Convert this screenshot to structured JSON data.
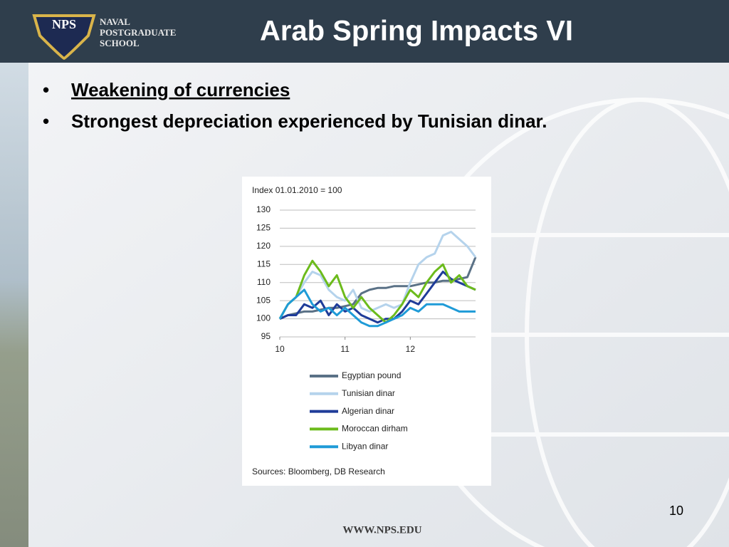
{
  "header": {
    "logo_badge": "NPS",
    "logo_text": [
      "NAVAL",
      "POSTGRADUATE",
      "SCHOOL"
    ],
    "title": "Arab Spring Impacts VI"
  },
  "bullets": [
    "Weakening of currencies",
    "Strongest depreciation experienced by Tunisian dinar."
  ],
  "page_number": 10,
  "footer": "WWW.NPS.EDU",
  "chart_data": {
    "type": "line",
    "y_label": "Index 01.01.2010 = 100",
    "source": "Sources: Bloomberg, DB Research",
    "x": [
      10,
      10.125,
      10.25,
      10.375,
      10.5,
      10.625,
      10.75,
      10.875,
      11,
      11.125,
      11.25,
      11.375,
      11.5,
      11.625,
      11.75,
      11.875,
      12,
      12.125,
      12.25,
      12.375,
      12.5,
      12.625,
      12.75,
      12.875,
      13
    ],
    "xlim": [
      10,
      13
    ],
    "xticks": [
      10,
      11,
      12
    ],
    "ylim": [
      95,
      130
    ],
    "yticks": [
      95,
      100,
      105,
      110,
      115,
      120,
      125,
      130
    ],
    "grid": true,
    "legend": "bottom",
    "series": [
      {
        "name": "Egyptian pound",
        "color": "#5a7186",
        "values": [
          100,
          101,
          101.5,
          102,
          102,
          102.5,
          103,
          103,
          103.5,
          104,
          107,
          108,
          108.5,
          108.5,
          109,
          109,
          109,
          109.5,
          110,
          110,
          110.5,
          110.5,
          111,
          111.5,
          117
        ]
      },
      {
        "name": "Tunisian dinar",
        "color": "#b5d3ec",
        "values": [
          100,
          104,
          106,
          110,
          113,
          112,
          108,
          106,
          105,
          108,
          103,
          102,
          103,
          104,
          103,
          104,
          110,
          115,
          117,
          118,
          123,
          124,
          122,
          120,
          117
        ]
      },
      {
        "name": "Algerian dinar",
        "color": "#1f3c99",
        "values": [
          100,
          101,
          101,
          104,
          103,
          105,
          101,
          104,
          102,
          103,
          101,
          100,
          99,
          100,
          100,
          102,
          105,
          104,
          107,
          110,
          113,
          111,
          110,
          109,
          108
        ]
      },
      {
        "name": "Moroccan dirham",
        "color": "#6cbb1c",
        "values": [
          100,
          104,
          106,
          112,
          116,
          113,
          109,
          112,
          106,
          103,
          106,
          103,
          101,
          99,
          101,
          104,
          108,
          106,
          110,
          113,
          115,
          110,
          112,
          109,
          108
        ]
      },
      {
        "name": "Libyan dinar",
        "color": "#1f9bd7",
        "values": [
          100,
          104,
          106,
          108,
          104,
          102,
          103,
          101,
          103,
          101,
          99,
          98,
          98,
          99,
          100,
          101,
          103,
          102,
          104,
          104,
          104,
          103,
          102,
          102,
          102
        ]
      }
    ]
  }
}
